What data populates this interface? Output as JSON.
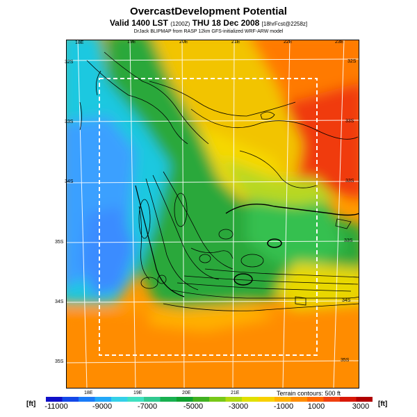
{
  "header": {
    "title": "OvercastDevelopment Potential",
    "valid_prefix": "Valid 1400 LST",
    "valid_utc": "(1200Z)",
    "valid_date": "THU 18 Dec 2008",
    "valid_run": "[18hrFcst@2258z]",
    "credit": "DrJack BLIPMAP from RASP 12km GFS-initialized WRF-ARW model"
  },
  "map": {
    "top_lon_labels": [
      "18E",
      "19E",
      "20E",
      "21E",
      "22E",
      "23E"
    ],
    "bottom_lon_labels": [
      "18E",
      "19E",
      "20E",
      "21E"
    ],
    "left_lat_labels": [
      "32S",
      "33S",
      "34S",
      "35S",
      "34S",
      "35S"
    ],
    "right_lat_labels": [
      "32S",
      "33S",
      "33S",
      "33S",
      "34S",
      "35S"
    ],
    "terrain_note": "Terrain contours: 500 ft",
    "colors": {
      "ocean_blue": "#2f8cff",
      "land_green": "#1aa83c",
      "land_yellow": "#f0d800",
      "land_orange": "#ff8a00",
      "land_red": "#e02010",
      "grid": "#ffffff",
      "contour": "#000000"
    }
  },
  "colorbar": {
    "unit_left": "[ft]",
    "unit_right": "[ft]",
    "labels": [
      "-11000",
      "-9000",
      "-7000",
      "-5000",
      "-3000",
      "-1000",
      "1000",
      "3000"
    ],
    "colors": [
      "#1010c8",
      "#1448e8",
      "#1a7cf8",
      "#22a8f8",
      "#34d0e8",
      "#40e0c0",
      "#30c890",
      "#18b050",
      "#10a030",
      "#40b020",
      "#78c818",
      "#b0d810",
      "#e0e000",
      "#f8d000",
      "#ffb000",
      "#ff8c00",
      "#ff6800",
      "#f04010",
      "#d81808",
      "#b00000"
    ]
  }
}
